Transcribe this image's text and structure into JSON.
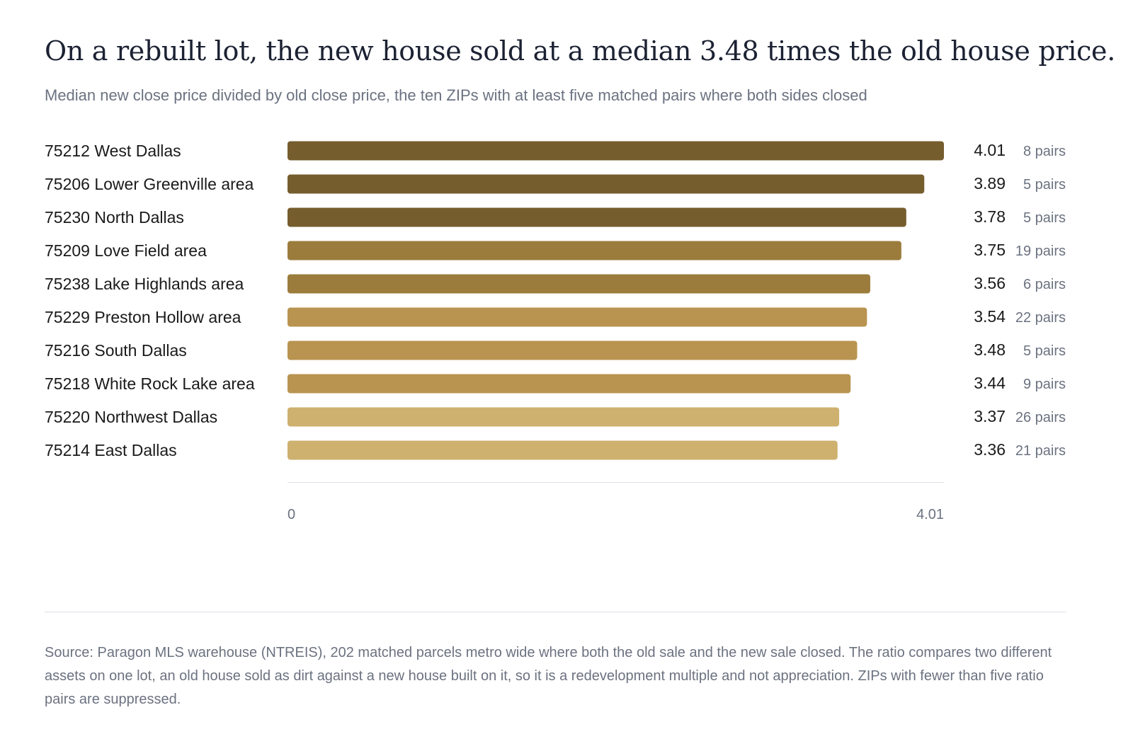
{
  "header": {
    "title": "On a rebuilt lot, the new house sold at a median 3.48 times the old house price.",
    "subtitle": "Median new close price divided by old close price, the ten ZIPs with at least five matched pairs where both sides closed"
  },
  "footer": {
    "source": "Source: Paragon MLS warehouse (NTREIS), 202 matched parcels metro wide where both the old sale and the new sale closed. The ratio compares two different assets on one lot, an old house sold as dirt against a new house built on it, so it is a redevelopment multiple and not appreciation. ZIPs with fewer than five ratio pairs are suppressed."
  },
  "chart_data": {
    "type": "bar",
    "orientation": "horizontal",
    "categories": [
      "75212 West Dallas",
      "75206 Lower Greenville area",
      "75230 North Dallas",
      "75209 Love Field area",
      "75238 Lake Highlands area",
      "75229 Preston Hollow area",
      "75216 South Dallas",
      "75218 White Rock Lake area",
      "75220 Northwest Dallas",
      "75214 East Dallas"
    ],
    "values": [
      4.01,
      3.89,
      3.78,
      3.75,
      3.56,
      3.54,
      3.48,
      3.44,
      3.37,
      3.36
    ],
    "value_labels": [
      "4.01",
      "3.89",
      "3.78",
      "3.75",
      "3.56",
      "3.54",
      "3.48",
      "3.44",
      "3.37",
      "3.36"
    ],
    "pair_labels": [
      "8 pairs",
      "5 pairs",
      "5 pairs",
      "19 pairs",
      "6 pairs",
      "22 pairs",
      "5 pairs",
      "9 pairs",
      "26 pairs",
      "21 pairs"
    ],
    "bar_colors": [
      "#765d2e",
      "#765d2e",
      "#765d2e",
      "#9b7c3c",
      "#9b7c3c",
      "#b99450",
      "#b99450",
      "#b99450",
      "#ceb06f",
      "#ceb06f"
    ],
    "xlim": [
      0,
      4.01
    ],
    "x_tick_labels": [
      "0",
      "4.01"
    ],
    "grid": false
  }
}
